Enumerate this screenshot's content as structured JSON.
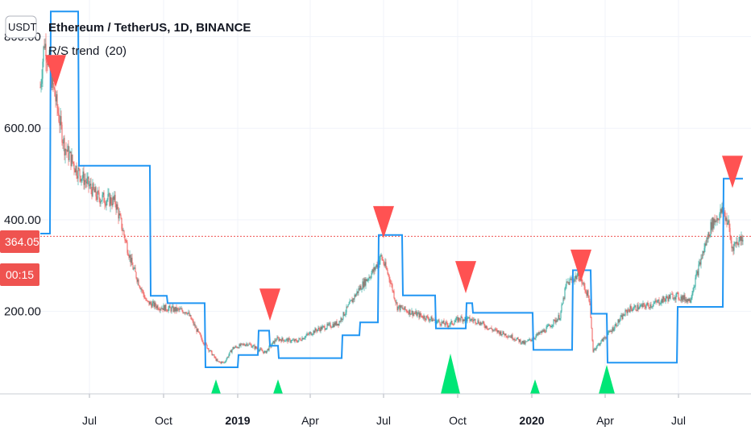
{
  "header": {
    "currency_button": "USDT",
    "title": "Ethereum / TetherUS, 1D, BINANCE",
    "indicator": "R/S trend",
    "indicator_param": "(20)"
  },
  "price_badge": {
    "price": "364.05",
    "countdown": "00:15",
    "color": "#ef5350"
  },
  "colors": {
    "up_candle": "#26a69a",
    "down_candle": "#ef5350",
    "trend_line": "#2196f3",
    "buy_marker": "#00e676",
    "sell_marker": "#ff5252",
    "grid": "#f0f3fa"
  },
  "chart_data": {
    "type": "line",
    "title": "Ethereum / TetherUS, 1D, BINANCE",
    "y_axis": {
      "ticks": [
        "800.00",
        "600.00",
        "400.00",
        "200.00"
      ],
      "tick_values": [
        800,
        600,
        400,
        200
      ],
      "range": [
        20,
        880
      ]
    },
    "x_axis": {
      "ticks": [
        "Jul",
        "Oct",
        "2019",
        "Apr",
        "Jul",
        "Oct",
        "2020",
        "Apr",
        "Jul"
      ],
      "bold_ticks": [
        "2019",
        "2020"
      ],
      "tick_dates": [
        "2018-07-01",
        "2018-10-01",
        "2019-01-01",
        "2019-04-01",
        "2019-07-01",
        "2019-10-01",
        "2020-01-01",
        "2020-04-01",
        "2020-07-01"
      ],
      "range": [
        "2018-05-01",
        "2020-09-19"
      ]
    },
    "current_price": 364.05,
    "price_series": {
      "name": "ETH/USDT",
      "x": [
        "2018-05-01",
        "2018-05-06",
        "2018-05-16",
        "2018-05-31",
        "2018-06-15",
        "2018-07-11",
        "2018-08-02",
        "2018-08-23",
        "2018-09-10",
        "2018-09-25",
        "2018-10-11",
        "2018-10-30",
        "2018-11-17",
        "2018-12-07",
        "2018-12-15",
        "2018-12-26",
        "2019-01-13",
        "2019-02-04",
        "2019-02-18",
        "2019-03-15",
        "2019-04-09",
        "2019-05-06",
        "2019-06-01",
        "2019-06-19",
        "2019-06-28",
        "2019-07-08",
        "2019-07-18",
        "2019-08-09",
        "2019-09-03",
        "2019-09-19",
        "2019-10-04",
        "2019-10-24",
        "2019-11-13",
        "2019-12-07",
        "2019-12-23",
        "2020-01-18",
        "2020-02-05",
        "2020-02-13",
        "2020-02-28",
        "2020-03-12",
        "2020-03-17",
        "2020-04-07",
        "2020-04-30",
        "2020-05-29",
        "2020-06-25",
        "2020-07-15",
        "2020-07-30",
        "2020-08-11",
        "2020-08-25",
        "2020-09-01",
        "2020-09-05",
        "2020-09-19"
      ],
      "values": [
        690,
        790,
        700,
        560,
        510,
        450,
        440,
        300,
        220,
        210,
        205,
        200,
        140,
        90,
        88,
        120,
        130,
        110,
        140,
        135,
        160,
        175,
        250,
        290,
        320,
        275,
        210,
        195,
        180,
        170,
        185,
        180,
        160,
        145,
        130,
        160,
        190,
        260,
        280,
        230,
        115,
        155,
        205,
        215,
        235,
        225,
        320,
        390,
        420,
        390,
        340,
        364.05
      ]
    },
    "rs_trend_line": {
      "name": "R/S trend",
      "x": [
        "2018-05-01",
        "2018-05-13",
        "2018-05-14",
        "2018-06-17",
        "2018-06-18",
        "2018-09-14",
        "2018-09-15",
        "2018-10-05",
        "2018-10-06",
        "2018-11-21",
        "2018-11-22",
        "2019-01-01",
        "2019-01-02",
        "2019-01-26",
        "2019-01-27",
        "2019-02-09",
        "2019-02-10",
        "2019-02-20",
        "2019-02-21",
        "2019-05-10",
        "2019-05-11",
        "2019-06-01",
        "2019-06-02",
        "2019-06-24",
        "2019-06-25",
        "2019-07-24",
        "2019-07-25",
        "2019-09-03",
        "2019-09-04",
        "2019-10-11",
        "2019-10-12",
        "2019-10-19",
        "2019-10-20",
        "2020-01-02",
        "2020-01-03",
        "2020-02-20",
        "2020-02-21",
        "2020-03-14",
        "2020-03-15",
        "2020-04-03",
        "2020-04-04",
        "2020-06-29",
        "2020-06-30",
        "2020-08-25",
        "2020-08-26",
        "2020-09-19"
      ],
      "values": [
        370,
        370,
        855,
        855,
        518,
        518,
        234,
        234,
        218,
        218,
        78,
        78,
        105,
        105,
        158,
        158,
        125,
        125,
        98,
        98,
        148,
        148,
        176,
        176,
        367,
        367,
        235,
        235,
        163,
        163,
        218,
        218,
        197,
        197,
        116,
        116,
        290,
        290,
        195,
        195,
        88,
        88,
        210,
        210,
        490,
        490
      ]
    },
    "sell_signals": [
      {
        "x": "2018-05-20",
        "y": 760
      },
      {
        "x": "2019-02-10",
        "y": 250
      },
      {
        "x": "2019-07-01",
        "y": 430
      },
      {
        "x": "2019-10-11",
        "y": 310
      },
      {
        "x": "2020-03-02",
        "y": 335
      },
      {
        "x": "2020-09-06",
        "y": 540
      }
    ],
    "buy_signals": [
      {
        "x": "2018-12-05",
        "size": "small"
      },
      {
        "x": "2019-02-20",
        "size": "small"
      },
      {
        "x": "2019-09-22",
        "size": "large"
      },
      {
        "x": "2020-01-05",
        "size": "small"
      },
      {
        "x": "2020-04-03",
        "size": "medium"
      }
    ]
  }
}
